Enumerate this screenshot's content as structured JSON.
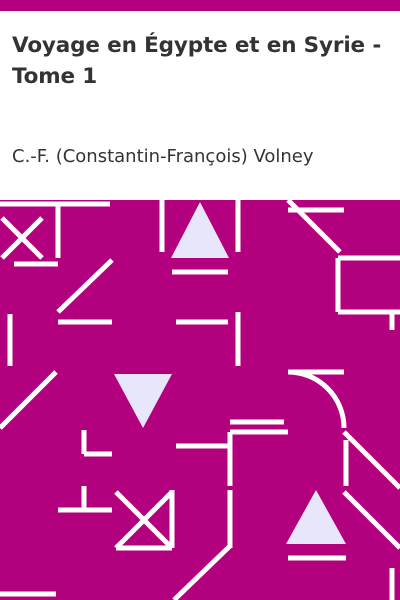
{
  "book": {
    "title": "Voyage en Égypte et en Syrie - Tome 1",
    "author": "C.-F. (Constantin-François) Volney"
  },
  "colors": {
    "accent": "#b3007f",
    "pattern_line": "#ffffff",
    "pattern_shape": "#e8e6fb",
    "text": "#333333",
    "background": "#ffffff"
  }
}
